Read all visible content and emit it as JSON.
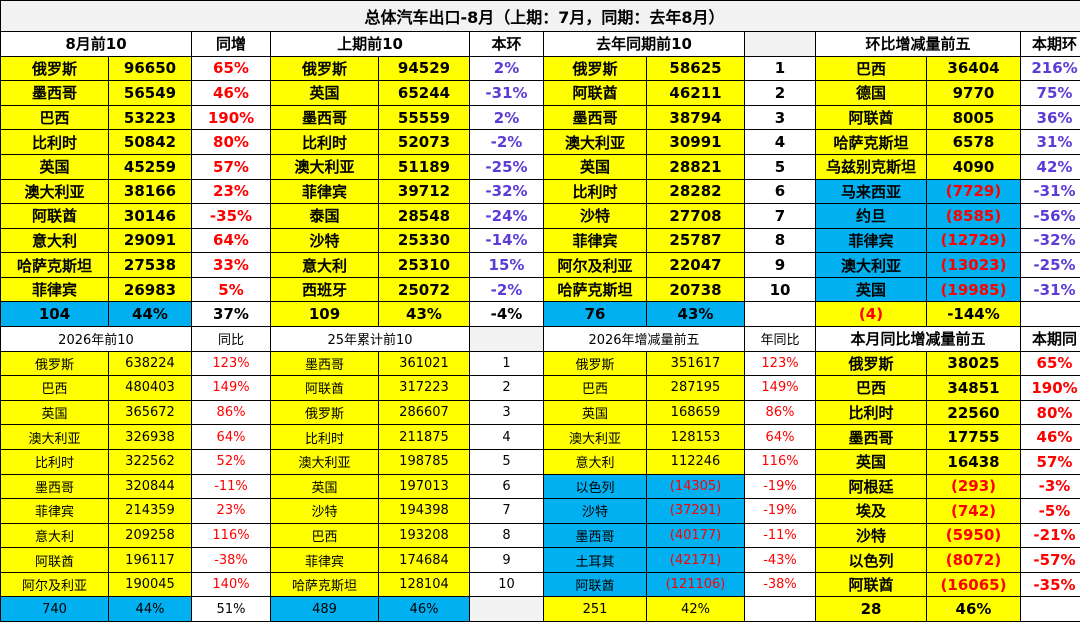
{
  "title": "总体汽车出口-8月（上期：7月，同期：去年8月）",
  "top": {
    "headers": [
      "8月前10",
      "同增",
      "上期前10",
      "本环",
      "去年同期前10",
      "环比增减量前五",
      "本期环"
    ],
    "rows": [
      [
        "俄罗斯",
        "96650",
        "65%",
        "俄罗斯",
        "94529",
        "2%",
        "俄罗斯",
        "58625",
        "1",
        "巴西",
        "36404",
        "216%"
      ],
      [
        "墨西哥",
        "56549",
        "46%",
        "英国",
        "65244",
        "-31%",
        "阿联酋",
        "46211",
        "2",
        "德国",
        "9770",
        "75%"
      ],
      [
        "巴西",
        "53223",
        "190%",
        "墨西哥",
        "55559",
        "2%",
        "墨西哥",
        "38794",
        "3",
        "阿联酋",
        "8005",
        "36%"
      ],
      [
        "比利时",
        "50842",
        "80%",
        "比利时",
        "52073",
        "-2%",
        "澳大利亚",
        "30991",
        "4",
        "哈萨克斯坦",
        "6578",
        "31%"
      ],
      [
        "英国",
        "45259",
        "57%",
        "澳大利亚",
        "51189",
        "-25%",
        "英国",
        "28821",
        "5",
        "乌兹别克斯坦",
        "4090",
        "42%"
      ],
      [
        "澳大利亚",
        "38166",
        "23%",
        "菲律宾",
        "39712",
        "-32%",
        "比利时",
        "28282",
        "6",
        "马来西亚",
        "(7729)",
        "-31%"
      ],
      [
        "阿联酋",
        "30146",
        "-35%",
        "泰国",
        "28548",
        "-24%",
        "沙特",
        "27708",
        "7",
        "约旦",
        "(8585)",
        "-56%"
      ],
      [
        "意大利",
        "29091",
        "64%",
        "沙特",
        "25330",
        "-14%",
        "菲律宾",
        "25787",
        "8",
        "菲律宾",
        "(12729)",
        "-32%"
      ],
      [
        "哈萨克斯坦",
        "27538",
        "33%",
        "意大利",
        "25310",
        "15%",
        "阿尔及利亚",
        "22047",
        "9",
        "澳大利亚",
        "(13023)",
        "-25%"
      ],
      [
        "菲律宾",
        "26983",
        "5%",
        "西班牙",
        "25072",
        "-2%",
        "哈萨克斯坦",
        "20738",
        "10",
        "英国",
        "(19985)",
        "-31%"
      ]
    ],
    "summary": [
      "104",
      "44%",
      "37%",
      "109",
      "43%",
      "-4%",
      "76",
      "43%",
      "(4)",
      "-144%"
    ]
  },
  "bottom": {
    "headers": [
      "2026年前10",
      "同比",
      "25年累计前10",
      "2026年增减量前五",
      "年同比",
      "本月同比增减量前五",
      "本期同"
    ],
    "rows": [
      [
        "俄罗斯",
        "638224",
        "123%",
        "墨西哥",
        "361021",
        "1",
        "俄罗斯",
        "351617",
        "123%",
        "俄罗斯",
        "38025",
        "65%"
      ],
      [
        "巴西",
        "480403",
        "149%",
        "阿联酋",
        "317223",
        "2",
        "巴西",
        "287195",
        "149%",
        "巴西",
        "34851",
        "190%"
      ],
      [
        "英国",
        "365672",
        "86%",
        "俄罗斯",
        "286607",
        "3",
        "英国",
        "168659",
        "86%",
        "比利时",
        "22560",
        "80%"
      ],
      [
        "澳大利亚",
        "326938",
        "64%",
        "比利时",
        "211875",
        "4",
        "澳大利亚",
        "128153",
        "64%",
        "墨西哥",
        "17755",
        "46%"
      ],
      [
        "比利时",
        "322562",
        "52%",
        "澳大利亚",
        "198785",
        "5",
        "意大利",
        "112246",
        "116%",
        "英国",
        "16438",
        "57%"
      ],
      [
        "墨西哥",
        "320844",
        "-11%",
        "英国",
        "197013",
        "6",
        "以色列",
        "(14305)",
        "-19%",
        "阿根廷",
        "(293)",
        "-3%"
      ],
      [
        "菲律宾",
        "214359",
        "23%",
        "沙特",
        "194398",
        "7",
        "沙特",
        "(37291)",
        "-19%",
        "埃及",
        "(742)",
        "-5%"
      ],
      [
        "意大利",
        "209258",
        "116%",
        "巴西",
        "193208",
        "8",
        "墨西哥",
        "(40177)",
        "-11%",
        "沙特",
        "(5950)",
        "-21%"
      ],
      [
        "阿联酋",
        "196117",
        "-38%",
        "菲律宾",
        "174684",
        "9",
        "土耳其",
        "(42171)",
        "-43%",
        "以色列",
        "(8072)",
        "-57%"
      ],
      [
        "阿尔及利亚",
        "190045",
        "140%",
        "哈萨克斯坦",
        "128104",
        "10",
        "阿联酋",
        "(121106)",
        "-38%",
        "阿联酋",
        "(16065)",
        "-35%"
      ]
    ],
    "summary": [
      "740",
      "44%",
      "51%",
      "489",
      "46%",
      "251",
      "42%",
      "28",
      "46%"
    ]
  }
}
